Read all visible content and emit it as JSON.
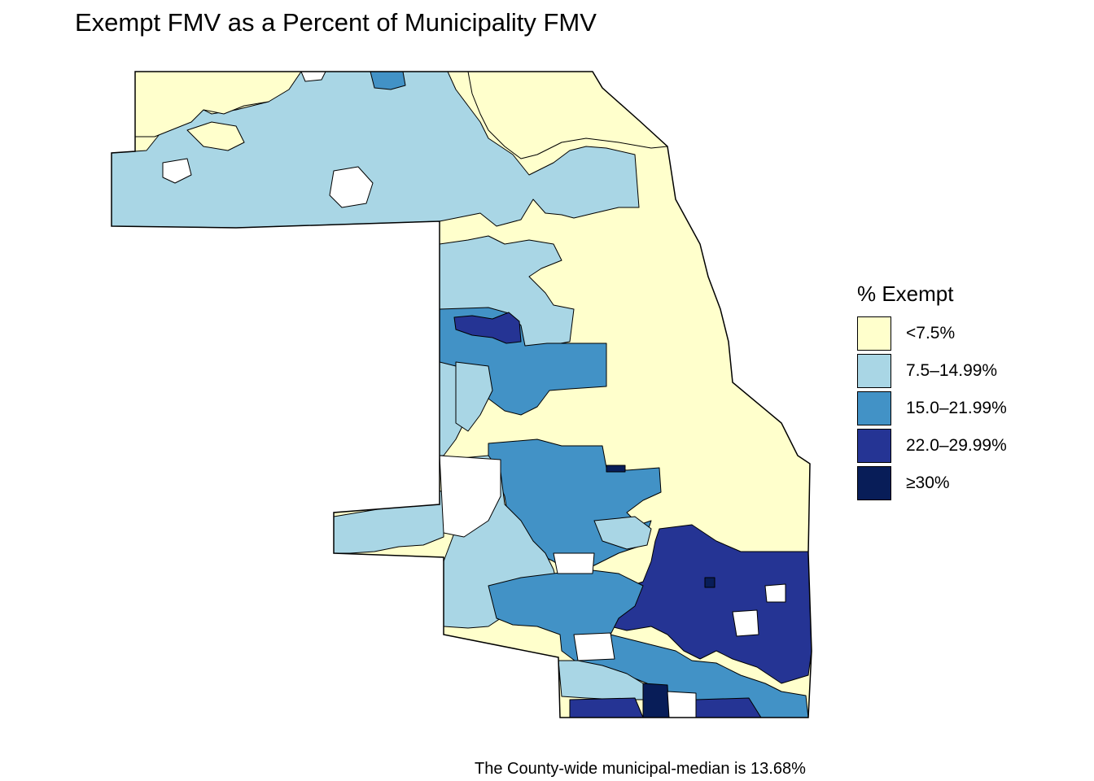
{
  "title": "Exempt FMV as a Percent of Municipality FMV",
  "legend": {
    "title": "% Exempt",
    "items": [
      {
        "label": "<7.5%",
        "color": "#ffffcc"
      },
      {
        "label": "7.5–14.99%",
        "color": "#a9d6e5"
      },
      {
        "label": "15.0–21.99%",
        "color": "#4292c6"
      },
      {
        "label": "22.0–29.99%",
        "color": "#253494"
      },
      {
        "label": "≥30%",
        "color": "#081d58"
      }
    ]
  },
  "no_data_color": "#ffffff",
  "caption": "The County-wide municipal-median is 13.68%"
}
